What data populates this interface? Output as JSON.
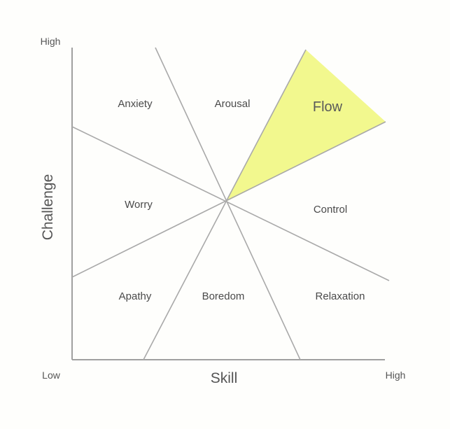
{
  "axes": {
    "x_title": "Skill",
    "y_title": "Challenge",
    "x_low": "Low",
    "x_high": "High",
    "y_high": "High"
  },
  "regions": {
    "anxiety": "Anxiety",
    "arousal": "Arousal",
    "flow": "Flow",
    "worry": "Worry",
    "control": "Control",
    "apathy": "Apathy",
    "boredom": "Boredom",
    "relaxation": "Relaxation"
  },
  "colors": {
    "flow_fill": "#f2f88e",
    "lines": "#a9a9a9"
  }
}
